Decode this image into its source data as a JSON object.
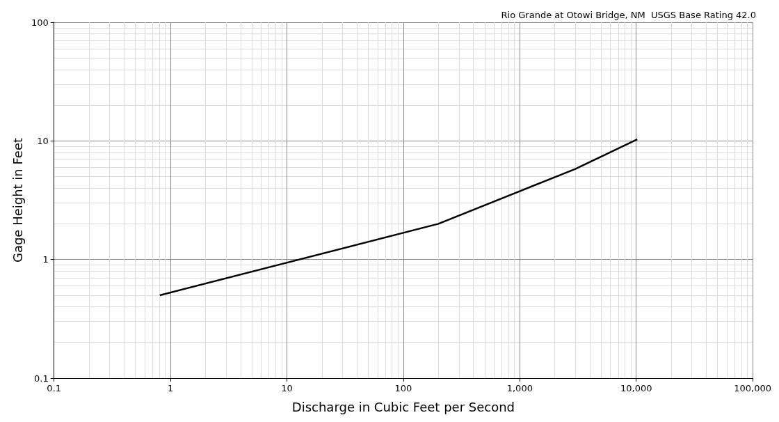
{
  "chart_data": {
    "type": "line",
    "title": "Rio Grande at Otowi Bridge, NM  USGS Base Rating 42.0",
    "xlabel": "Discharge in Cubic Feet per Second",
    "ylabel": "Gage Height in Feet",
    "log": "xy",
    "grid": true,
    "marker": "none",
    "line_style": "solid",
    "xlim": [
      0.1,
      100000
    ],
    "xticks": [
      0.1,
      1,
      10,
      100,
      {
        "value": 1000,
        "label": "1,000"
      },
      {
        "value": 10000,
        "label": "10,000"
      },
      {
        "value": 100000,
        "label": "100,000"
      }
    ],
    "ylim": [
      0.1,
      100
    ],
    "yticks": [
      0.1,
      1,
      10,
      100
    ],
    "series": [
      {
        "color": "#000000",
        "x": [
          0.81,
          200,
          3000,
          10200
        ],
        "values": [
          0.5,
          2.0,
          5.8,
          10.3
        ]
      }
    ]
  }
}
